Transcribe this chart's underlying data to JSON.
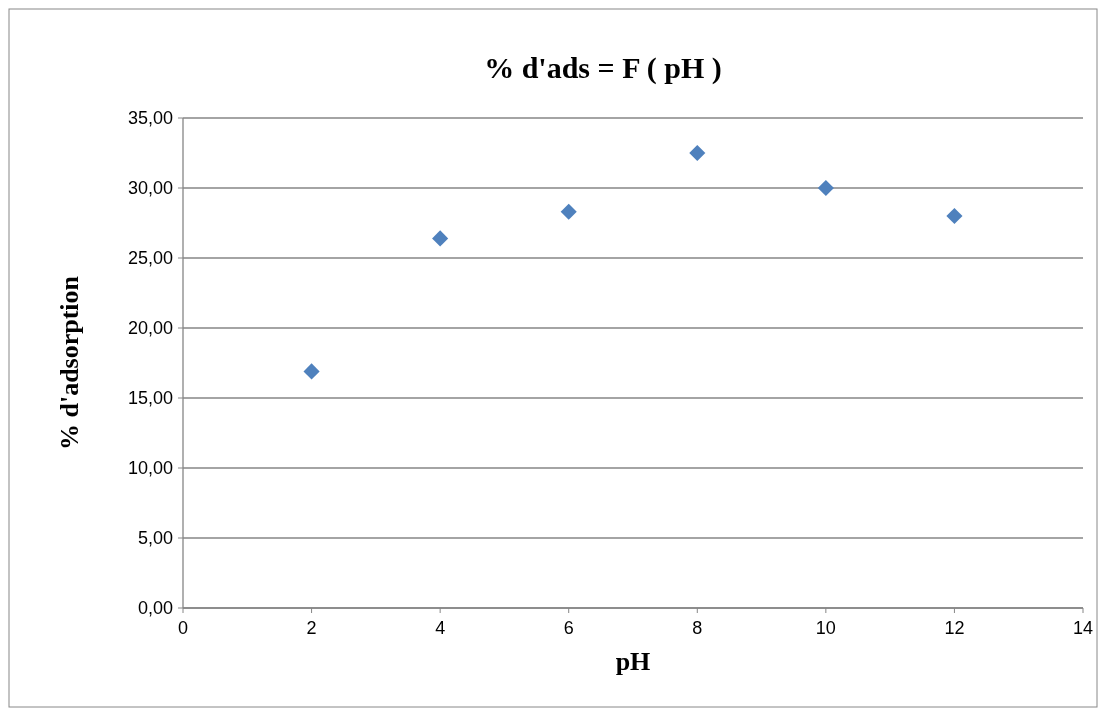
{
  "chart_data": {
    "type": "scatter",
    "title": "% d'ads = F ( pH )",
    "xlabel": "pH",
    "ylabel": "% d'adsorption",
    "x": [
      2,
      4,
      6,
      8,
      10,
      12
    ],
    "series": [
      {
        "color": "#4f81bd",
        "values": [
          16.9,
          26.4,
          28.3,
          32.5,
          30.0,
          28.0
        ]
      }
    ],
    "xlim": [
      0,
      14
    ],
    "xticks": [
      0,
      2,
      4,
      6,
      8,
      10,
      12,
      14
    ],
    "ylim": [
      0,
      35
    ],
    "yticks": [
      {
        "value": 0,
        "label": "0,00"
      },
      {
        "value": 5,
        "label": "5,00"
      },
      {
        "value": 10,
        "label": "10,00"
      },
      {
        "value": 15,
        "label": "15,00"
      },
      {
        "value": 20,
        "label": "20,00"
      },
      {
        "value": 25,
        "label": "25,00"
      },
      {
        "value": 30,
        "label": "30,00"
      },
      {
        "value": 35,
        "label": "35,00"
      }
    ],
    "grid": "y",
    "marker": "diamond"
  }
}
